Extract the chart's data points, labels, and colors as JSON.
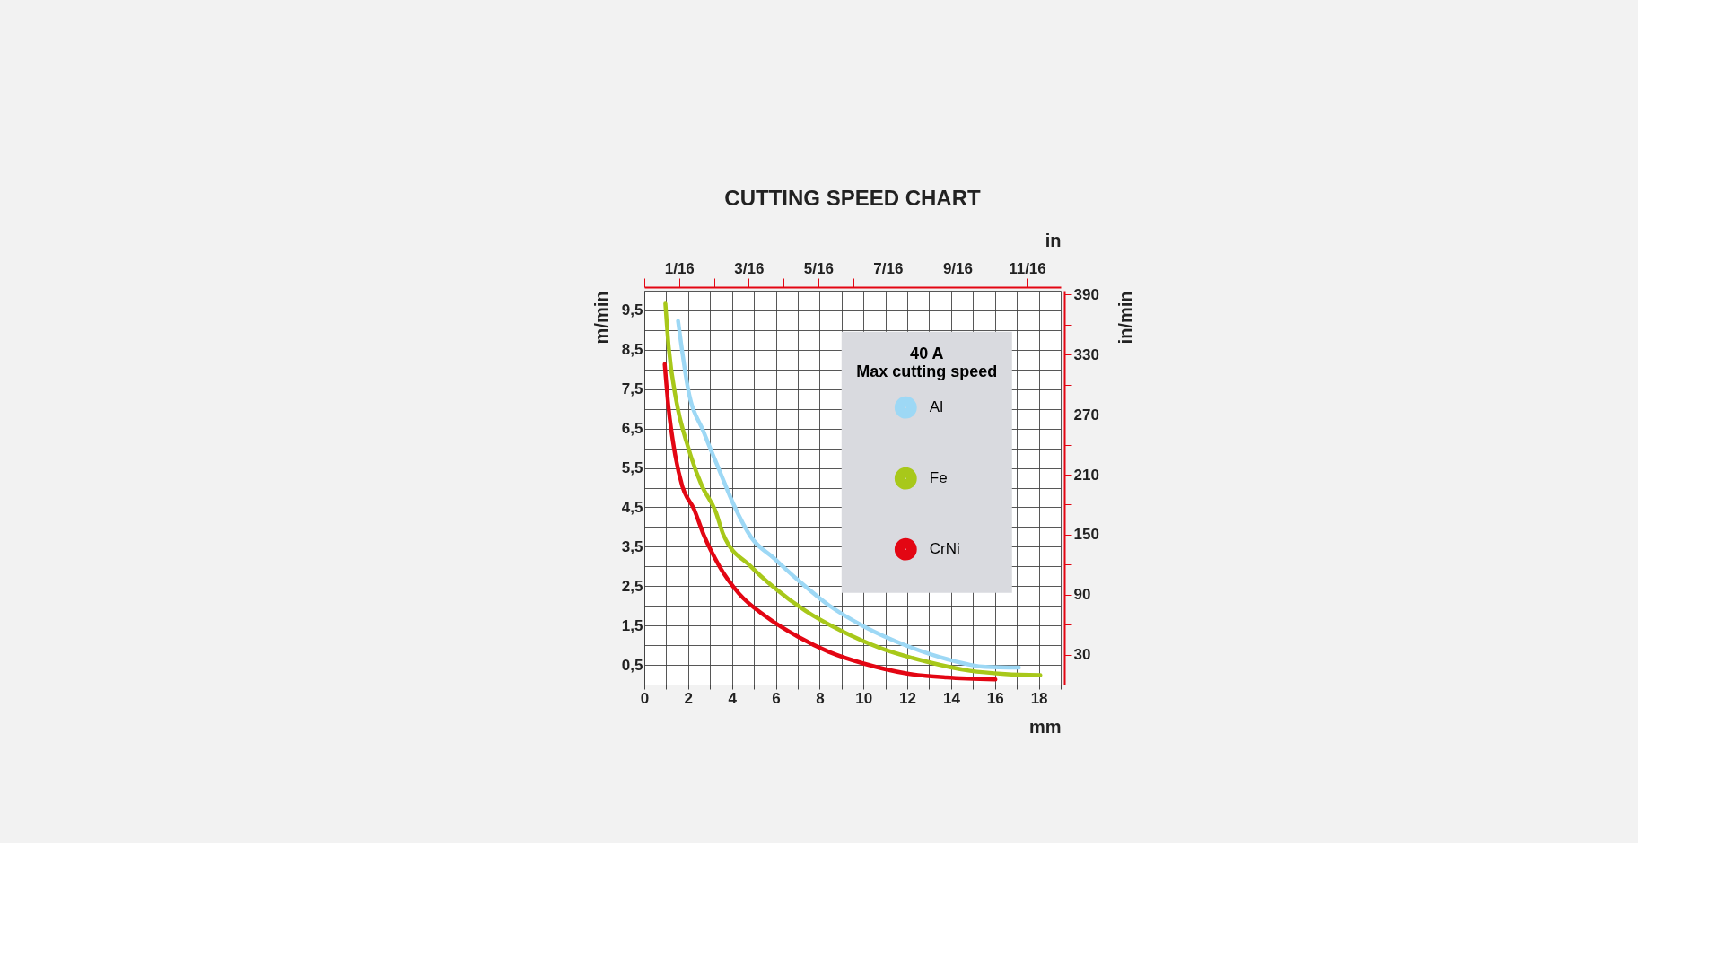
{
  "chart_data": {
    "type": "line",
    "title": "CUTTING SPEED CHART",
    "xlabel": "mm",
    "ylabel": "m/min",
    "y2label": "in/min",
    "x2label": "in",
    "legend_title": "40 A",
    "annotations": [
      "Max cutting speed"
    ],
    "xlim": [
      0,
      19
    ],
    "xticks": [
      0,
      {
        "value": 1,
        "label": null
      },
      2,
      {
        "value": 3,
        "label": null
      },
      4,
      {
        "value": 5,
        "label": null
      },
      6,
      {
        "value": 7,
        "label": null
      },
      8,
      {
        "value": 9,
        "label": null
      },
      10,
      {
        "value": 11,
        "label": null
      },
      12,
      {
        "value": 13,
        "label": null
      },
      14,
      {
        "value": 15,
        "label": null
      },
      16,
      {
        "value": 17,
        "label": null
      },
      18,
      {
        "value": 19,
        "label": null
      }
    ],
    "ylim": [
      0,
      10
    ],
    "yticks": [
      {
        "value": 0,
        "label": null
      },
      {
        "value": 0.5,
        "label": "0,5"
      },
      {
        "value": 1,
        "label": null
      },
      {
        "value": 1.5,
        "label": "1,5"
      },
      {
        "value": 2,
        "label": null
      },
      {
        "value": 2.5,
        "label": "2,5"
      },
      {
        "value": 3,
        "label": null
      },
      {
        "value": 3.5,
        "label": "3,5"
      },
      {
        "value": 4,
        "label": null
      },
      {
        "value": 4.5,
        "label": "4,5"
      },
      {
        "value": 5,
        "label": null
      },
      {
        "value": 5.5,
        "label": "5,5"
      },
      {
        "value": 6,
        "label": null
      },
      {
        "value": 6.5,
        "label": "6,5"
      },
      {
        "value": 7,
        "label": null
      },
      {
        "value": 7.5,
        "label": "7,5"
      },
      {
        "value": 8,
        "label": null
      },
      {
        "value": 8.5,
        "label": "8,5"
      },
      {
        "value": 9,
        "label": null
      },
      {
        "value": 9.5,
        "label": "9,5"
      },
      {
        "value": 10,
        "label": null
      }
    ],
    "y2lim": [
      0,
      394
    ],
    "y2ticks": [
      30,
      {
        "value": 60,
        "label": null
      },
      90,
      {
        "value": 120,
        "label": null
      },
      150,
      {
        "value": 180,
        "label": null
      },
      210,
      {
        "value": 240,
        "label": null
      },
      270,
      {
        "value": 300,
        "label": null
      },
      330,
      {
        "value": 360,
        "label": null
      },
      390
    ],
    "x2lim": [
      0,
      0.748
    ],
    "x2ticks": [
      {
        "value": 0,
        "label": null
      },
      {
        "value": 0.0625,
        "label": "1/16"
      },
      {
        "value": 0.125,
        "label": null
      },
      {
        "value": 0.1875,
        "label": "3/16"
      },
      {
        "value": 0.25,
        "label": null
      },
      {
        "value": 0.3125,
        "label": "5/16"
      },
      {
        "value": 0.375,
        "label": null
      },
      {
        "value": 0.4375,
        "label": "7/16"
      },
      {
        "value": 0.5,
        "label": null
      },
      {
        "value": 0.5625,
        "label": "9/16"
      },
      {
        "value": 0.625,
        "label": null
      },
      {
        "value": 0.6875,
        "label": "11/16"
      }
    ],
    "grid": true,
    "legend": "top right",
    "line_style": "solid",
    "series": [
      {
        "name": "Al",
        "color": "#9dd8f5",
        "x": [
          1.54,
          2.0,
          2.71,
          3.43,
          4.05,
          4.86,
          5.93,
          7.0,
          8.43,
          10.04,
          12.0,
          13.79,
          15.57,
          17.09
        ],
        "values": [
          9.23,
          7.49,
          6.41,
          5.43,
          4.6,
          3.75,
          3.2,
          2.66,
          2.01,
          1.47,
          0.98,
          0.65,
          0.45,
          0.43
        ]
      },
      {
        "name": "Fe",
        "color": "#a8c81a",
        "x": [
          0.96,
          1.11,
          1.46,
          2.0,
          2.63,
          3.25,
          3.61,
          4.86,
          5.93,
          7.36,
          8.96,
          10.75,
          12.89,
          14.86,
          16.46,
          18.07
        ],
        "values": [
          9.67,
          8.57,
          7.2,
          6.02,
          5.04,
          4.4,
          3.8,
          3.0,
          2.46,
          1.87,
          1.37,
          0.93,
          0.58,
          0.35,
          0.27,
          0.24
        ]
      },
      {
        "name": "CrNi",
        "color": "#e30613",
        "x": [
          0.93,
          1.11,
          1.38,
          1.73,
          2.27,
          2.71,
          3.43,
          4.32,
          5.57,
          7.0,
          8.43,
          10.04,
          12.0,
          13.79,
          16.02
        ],
        "values": [
          8.13,
          7.0,
          5.92,
          5.04,
          4.45,
          3.8,
          3.0,
          2.31,
          1.72,
          1.22,
          0.83,
          0.53,
          0.28,
          0.18,
          0.13
        ]
      }
    ]
  }
}
